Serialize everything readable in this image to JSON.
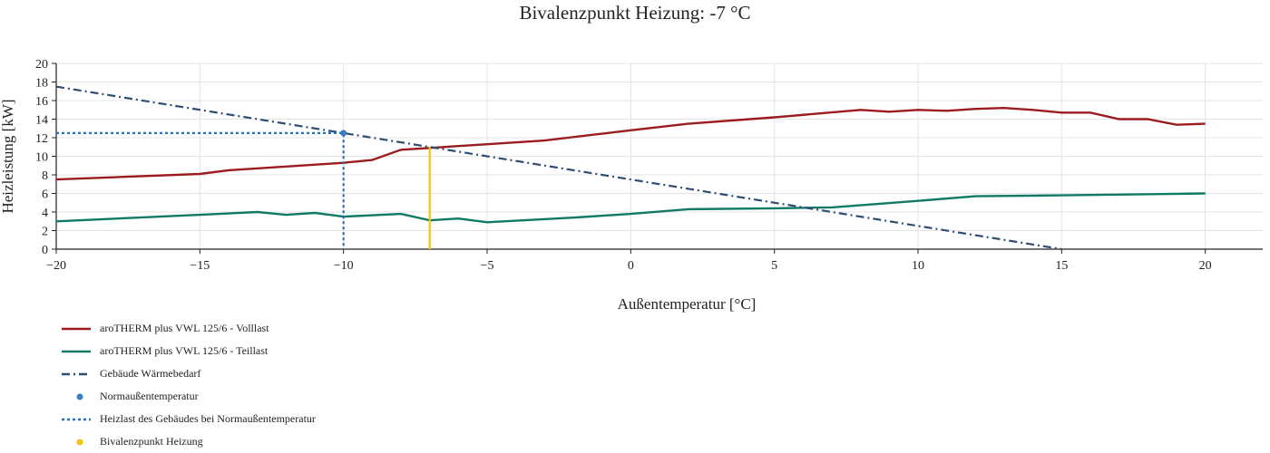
{
  "chart_data": {
    "type": "line",
    "title": "Bivalenzpunkt Heizung: -7 °C",
    "xlabel": "Außentemperatur [°C]",
    "ylabel": "Heizleistung [kW]",
    "xlim": [
      -20,
      22
    ],
    "ylim": [
      0,
      20
    ],
    "xticks": [
      -20,
      -15,
      -10,
      -5,
      0,
      5,
      10,
      15,
      20
    ],
    "xtick_labels": [
      "−20",
      "−15",
      "−10",
      "−5",
      "0",
      "5",
      "10",
      "15",
      "20"
    ],
    "yticks": [
      0,
      2,
      4,
      6,
      8,
      10,
      12,
      14,
      16,
      18,
      20
    ],
    "grid": true,
    "legend_position": "bottom-left",
    "series": [
      {
        "name": "aroTHERM plus VWL 125/6 - Volllast",
        "style": "solid",
        "color": "#9b1b1f",
        "x": [
          -20,
          -15,
          -14,
          -12,
          -10,
          -9,
          -8,
          -7,
          -6,
          -5,
          -3,
          0,
          2,
          5,
          8,
          9,
          10,
          11,
          12,
          13,
          14,
          15,
          16,
          17,
          18,
          19,
          20
        ],
        "y": [
          7.5,
          8.1,
          8.5,
          8.9,
          9.3,
          9.6,
          10.7,
          10.9,
          11.1,
          11.3,
          11.7,
          12.8,
          13.5,
          14.2,
          15.0,
          14.8,
          15.0,
          14.9,
          15.1,
          15.2,
          15.0,
          14.7,
          14.7,
          14.0,
          14.0,
          13.4,
          13.5
        ]
      },
      {
        "name": "aroTHERM plus VWL 125/6 - Teillast",
        "style": "solid",
        "color": "#117a65",
        "x": [
          -20,
          -15,
          -13,
          -12,
          -11,
          -10,
          -8,
          -7,
          -6,
          -5,
          -2,
          0,
          2,
          5,
          7,
          10,
          12,
          15,
          20
        ],
        "y": [
          3.0,
          3.7,
          4.0,
          3.7,
          3.9,
          3.5,
          3.8,
          3.1,
          3.3,
          2.9,
          3.4,
          3.8,
          4.3,
          4.4,
          4.5,
          5.2,
          5.7,
          5.8,
          6.0
        ]
      },
      {
        "name": "Gebäude Wärmebedarf",
        "style": "dashdot",
        "color": "#2e4d73",
        "x": [
          -20,
          15
        ],
        "y": [
          17.5,
          0
        ]
      },
      {
        "name": "Normaußentemperatur",
        "style": "marker",
        "color": "#3b7dc4",
        "x": [
          -10
        ],
        "y": [
          12.5
        ]
      },
      {
        "name": "Heizlast des Gebäudes bei Normaußentemperatur",
        "style": "dotted",
        "color": "#2f6eb5",
        "x": [
          -20,
          -10,
          -10
        ],
        "y": [
          12.5,
          12.5,
          0
        ]
      },
      {
        "name": "Bivalenzpunkt Heizung",
        "style": "vline",
        "color": "#f2c40f",
        "x": [
          -7,
          -7
        ],
        "y": [
          0,
          11
        ]
      }
    ]
  }
}
